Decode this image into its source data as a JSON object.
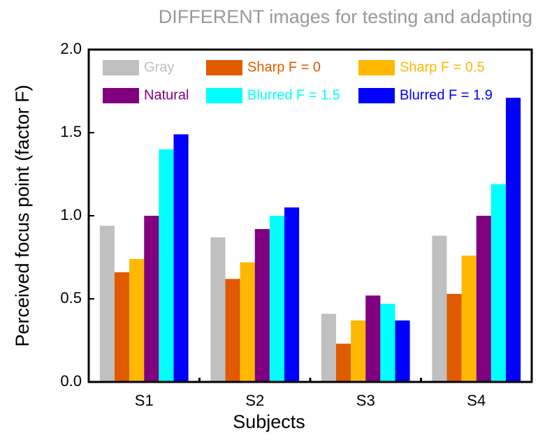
{
  "chart_data": {
    "type": "bar",
    "title": "DIFFERENT images for testing and adapting",
    "x_label": "Subjects",
    "y_label": "Perceived focus point (factor F)",
    "categories": [
      "S1",
      "S2",
      "S3",
      "S4"
    ],
    "series": [
      {
        "name": "Gray",
        "color": "#c0c0c0",
        "values": [
          0.94,
          0.87,
          0.41,
          0.88
        ]
      },
      {
        "name": "Sharp F = 0",
        "color": "#e05a00",
        "values": [
          0.66,
          0.62,
          0.23,
          0.53
        ]
      },
      {
        "name": "Sharp F = 0.5",
        "color": "#ffb800",
        "values": [
          0.74,
          0.72,
          0.37,
          0.76
        ]
      },
      {
        "name": "Natural",
        "color": "#800080",
        "values": [
          1.0,
          0.92,
          0.52,
          1.0
        ]
      },
      {
        "name": "Blurred F = 1.5",
        "color": "#00ffff",
        "values": [
          1.4,
          1.0,
          0.47,
          1.19
        ]
      },
      {
        "name": "Blurred F = 1.9",
        "color": "#0000ff",
        "values": [
          1.49,
          1.05,
          0.37,
          1.71
        ]
      }
    ],
    "ylim": [
      0,
      2
    ],
    "yticks": [
      {
        "value": 0,
        "label": "0.0"
      },
      0.5,
      {
        "value": 1,
        "label": "1.0"
      },
      1.5,
      {
        "value": 2,
        "label": "2.0"
      }
    ],
    "grid": false
  }
}
